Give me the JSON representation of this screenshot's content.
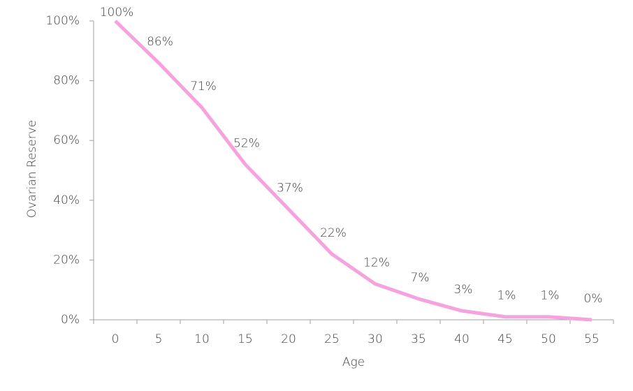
{
  "chart_data": {
    "type": "line",
    "x_label": "Age",
    "y_label": "Ovarian Reserve",
    "categories": [
      "0",
      "5",
      "10",
      "15",
      "20",
      "25",
      "30",
      "35",
      "40",
      "45",
      "50",
      "55"
    ],
    "values": [
      100,
      86,
      71,
      52,
      37,
      22,
      12,
      7,
      3,
      1,
      1,
      0
    ],
    "value_labels": [
      "100%",
      "86%",
      "71%",
      "52%",
      "37%",
      "22%",
      "12%",
      "7%",
      "3%",
      "1%",
      "1%",
      "0%"
    ],
    "color": "#f5a3df",
    "ylim": [
      0,
      100
    ],
    "yticks": [
      {
        "value": 0,
        "label": "0%"
      },
      {
        "value": 20,
        "label": "20%"
      },
      {
        "value": 40,
        "label": "40%"
      },
      {
        "value": 60,
        "label": "60%"
      },
      {
        "value": 80,
        "label": "80%"
      },
      {
        "value": 100,
        "label": "100%"
      }
    ],
    "grid": false
  }
}
